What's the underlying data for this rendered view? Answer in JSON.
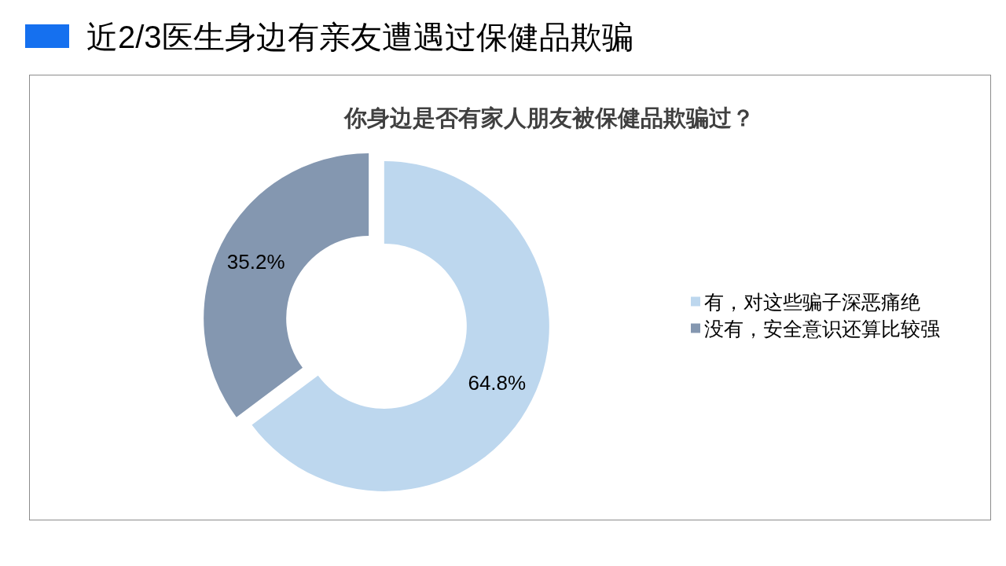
{
  "chart_data": {
    "type": "donut",
    "title": "近2/3医生身边有亲友遭遇过保健品欺骗",
    "subtitle": "你身边是否有家人朋友被保健品欺骗过？",
    "categories": [
      "有，对这些骗子深恶痛绝",
      "没有，安全意识还算比较强"
    ],
    "values": [
      64.8,
      35.2
    ],
    "colors": [
      "#bdd7ee",
      "#8497b0"
    ],
    "value_labels": [
      "64.8%",
      "35.2%"
    ],
    "legend": "right"
  }
}
